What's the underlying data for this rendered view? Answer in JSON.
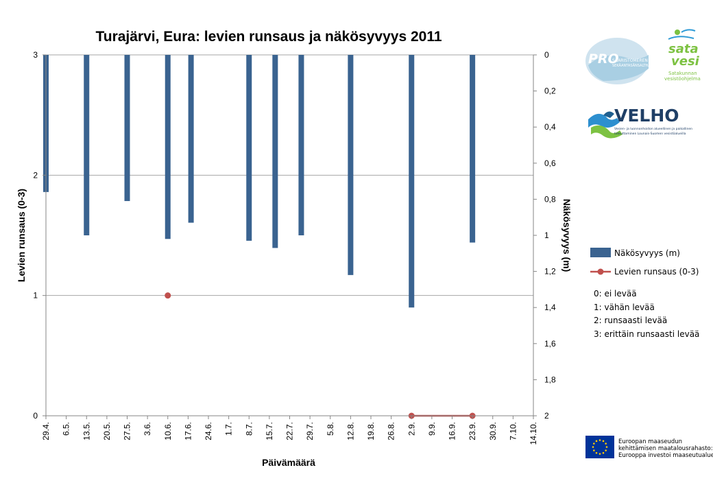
{
  "chart_data": {
    "type": "bar+line",
    "title": "Turajärvi, Eura: levien runsaus ja näkösyvyys 2011",
    "xlabel": "Päivämäärä",
    "ylabel_left": "Levien runsaus (0-3)",
    "ylabel_right": "Näkösyvyys (m)",
    "ylim_left": [
      0,
      3
    ],
    "ylim_right": [
      0,
      2
    ],
    "right_axis_inverted": true,
    "left_ticks": [
      "0",
      "1",
      "2",
      "3"
    ],
    "right_ticks": [
      "0",
      "0,2",
      "0,4",
      "0,6",
      "0,8",
      "1",
      "1,2",
      "1,4",
      "1,6",
      "1,8",
      "2"
    ],
    "categories": [
      "29.4.",
      "6.5.",
      "13.5.",
      "20.5.",
      "27.5.",
      "3.6.",
      "10.6.",
      "17.6.",
      "24.6.",
      "1.7.",
      "8.7.",
      "15.7.",
      "22.7.",
      "29.7.",
      "5.8.",
      "12.8.",
      "19.8.",
      "26.8.",
      "2.9.",
      "9.9.",
      "16.9.",
      "23.9.",
      "30.9.",
      "7.10.",
      "14.10."
    ],
    "series": [
      {
        "name": "Näkösyvyys (m)",
        "type": "bar",
        "axis": "right",
        "color": "#3a6390",
        "points": [
          {
            "day": 0,
            "value": 0.76
          },
          {
            "day": 14,
            "value": 1.0
          },
          {
            "day": 28,
            "value": 0.81
          },
          {
            "day": 42,
            "value": 1.02
          },
          {
            "day": 50,
            "value": 0.93
          },
          {
            "day": 70,
            "value": 1.03
          },
          {
            "day": 79,
            "value": 1.07
          },
          {
            "day": 88,
            "value": 1.0
          },
          {
            "day": 105,
            "value": 1.22
          },
          {
            "day": 126,
            "value": 1.4
          },
          {
            "day": 147,
            "value": 1.04
          }
        ]
      },
      {
        "name": "Levien runsaus (0-3)",
        "type": "line",
        "axis": "left",
        "color": "#c0504d",
        "points": [
          {
            "day": 42,
            "value": 1
          },
          {
            "day": 126,
            "value": 0
          },
          {
            "day": 147,
            "value": 0
          }
        ]
      }
    ],
    "legend": [
      "Näkösyvyys (m)",
      "Levien runsaus (0-3)"
    ],
    "notes": [
      "0: ei levää",
      "1: vähän levää",
      "2: runsaasti levää",
      "3: erittäin runsaasti levää"
    ]
  },
  "logos": {
    "pro": {
      "main": "PRO",
      "sub1": "SAARISTOMEREN",
      "sub2": "SEKÄANTASÄNSALTHAVEN"
    },
    "satavesi": {
      "line1": "sata",
      "line2": "vesi",
      "sub1": "Satakunnan",
      "sub2": "vesistöohjelma"
    },
    "velho": {
      "name": "VELHO",
      "sub1": "Vesien- ja luonnonhoidon alueellinen ja paikallinen",
      "sub2": "toteuttaminen Lounais-Suomen vesistöalueilla"
    },
    "eu": {
      "line1": "Euroopan maaseudun",
      "line2": "kehittämisen maatalousrahasto:",
      "line3": "Eurooppa investoi maaseutualueisiin"
    }
  },
  "colors": {
    "bar": "#3a6390",
    "line": "#c0504d",
    "grid": "#a6a6a6",
    "axis": "#868686"
  }
}
